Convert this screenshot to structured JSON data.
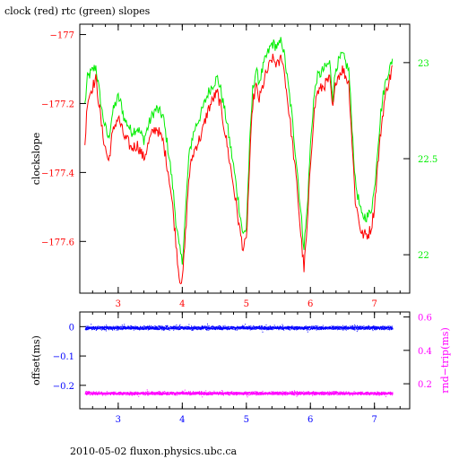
{
  "title": "clock (red) rtc (green) slopes",
  "footer": "2010-05-02 fluxon.physics.ubc.ca",
  "colors": {
    "red": "#ff0000",
    "green": "#00ee00",
    "blue": "#0000ff",
    "magenta": "#ff00ff",
    "axis": "#000000"
  },
  "chart_data": [
    {
      "type": "line",
      "xlim": [
        2.4,
        7.55
      ],
      "x_ticks": [
        3,
        4,
        5,
        6,
        7
      ],
      "x_tick_labels": [
        "3",
        "4",
        "5",
        "6",
        "7"
      ],
      "x_tick_color": "red",
      "ylabel_left": "clockslope",
      "ylim_left": [
        -177.75,
        -176.97
      ],
      "y_ticks_left": [
        -177,
        -177.2,
        -177.4,
        -177.6
      ],
      "y_tick_labels_left": [
        "−177",
        "−177.2",
        "−177.4",
        "−177.6"
      ],
      "ylim_right": [
        21.8,
        23.2
      ],
      "y_ticks_right": [
        23,
        22.5,
        22
      ],
      "y_tick_labels_right": [
        "23",
        "22.5",
        "22"
      ],
      "series": [
        {
          "name": "clock",
          "color": "red",
          "axis": "left",
          "x": [
            2.48,
            2.52,
            2.6,
            2.65,
            2.7,
            2.75,
            2.8,
            2.85,
            2.9,
            2.95,
            3.0,
            3.05,
            3.1,
            3.15,
            3.2,
            3.3,
            3.4,
            3.5,
            3.55,
            3.6,
            3.7,
            3.8,
            3.85,
            3.9,
            3.95,
            4.0,
            4.05,
            4.1,
            4.15,
            4.2,
            4.3,
            4.4,
            4.5,
            4.55,
            4.6,
            4.7,
            4.8,
            4.9,
            4.95,
            5.0,
            5.05,
            5.1,
            5.15,
            5.2,
            5.3,
            5.4,
            5.5,
            5.55,
            5.6,
            5.7,
            5.8,
            5.85,
            5.9,
            5.95,
            6.0,
            6.05,
            6.1,
            6.2,
            6.3,
            6.35,
            6.4,
            6.5,
            6.6,
            6.7,
            6.8,
            6.9,
            6.95,
            7.0,
            7.05,
            7.1,
            7.15,
            7.2,
            7.25,
            7.28
          ],
          "y": [
            -177.32,
            -177.19,
            -177.15,
            -177.13,
            -177.2,
            -177.28,
            -177.33,
            -177.37,
            -177.3,
            -177.26,
            -177.24,
            -177.27,
            -177.3,
            -177.31,
            -177.33,
            -177.32,
            -177.36,
            -177.3,
            -177.28,
            -177.27,
            -177.31,
            -177.42,
            -177.5,
            -177.6,
            -177.7,
            -177.72,
            -177.58,
            -177.42,
            -177.36,
            -177.33,
            -177.29,
            -177.22,
            -177.18,
            -177.17,
            -177.21,
            -177.32,
            -177.44,
            -177.57,
            -177.62,
            -177.6,
            -177.38,
            -177.2,
            -177.15,
            -177.19,
            -177.12,
            -177.07,
            -177.09,
            -177.06,
            -177.12,
            -177.28,
            -177.46,
            -177.58,
            -177.68,
            -177.56,
            -177.38,
            -177.24,
            -177.17,
            -177.15,
            -177.13,
            -177.22,
            -177.13,
            -177.1,
            -177.14,
            -177.48,
            -177.58,
            -177.58,
            -177.56,
            -177.5,
            -177.38,
            -177.28,
            -177.2,
            -177.15,
            -177.12,
            -177.09
          ]
        },
        {
          "name": "rtc",
          "color": "green",
          "axis": "right",
          "x": [
            2.48,
            2.52,
            2.6,
            2.65,
            2.7,
            2.75,
            2.8,
            2.85,
            2.9,
            2.95,
            3.0,
            3.05,
            3.1,
            3.15,
            3.2,
            3.3,
            3.4,
            3.5,
            3.55,
            3.6,
            3.7,
            3.8,
            3.85,
            3.9,
            3.95,
            4.0,
            4.05,
            4.1,
            4.15,
            4.2,
            4.3,
            4.4,
            4.5,
            4.55,
            4.6,
            4.7,
            4.8,
            4.9,
            4.95,
            5.0,
            5.05,
            5.1,
            5.15,
            5.2,
            5.3,
            5.4,
            5.5,
            5.55,
            5.6,
            5.7,
            5.8,
            5.85,
            5.9,
            5.95,
            6.0,
            6.05,
            6.1,
            6.2,
            6.3,
            6.35,
            6.4,
            6.5,
            6.6,
            6.7,
            6.8,
            6.9,
            6.95,
            7.0,
            7.05,
            7.1,
            7.15,
            7.2,
            7.25,
            7.28
          ],
          "y": [
            22.78,
            22.92,
            22.96,
            22.98,
            22.86,
            22.74,
            22.66,
            22.6,
            22.72,
            22.78,
            22.82,
            22.78,
            22.7,
            22.68,
            22.64,
            22.66,
            22.6,
            22.7,
            22.74,
            22.76,
            22.72,
            22.5,
            22.36,
            22.18,
            22.04,
            21.96,
            22.22,
            22.5,
            22.6,
            22.66,
            22.74,
            22.84,
            22.9,
            22.92,
            22.86,
            22.68,
            22.46,
            22.22,
            22.1,
            22.14,
            22.56,
            22.86,
            22.96,
            22.9,
            23.02,
            23.1,
            23.08,
            23.12,
            23.02,
            22.76,
            22.42,
            22.22,
            22.04,
            22.24,
            22.56,
            22.8,
            22.92,
            22.96,
            23.0,
            22.82,
            22.98,
            23.04,
            22.96,
            22.38,
            22.2,
            22.2,
            22.24,
            22.34,
            22.56,
            22.74,
            22.86,
            22.94,
            22.98,
            23.02
          ]
        }
      ]
    },
    {
      "type": "scatter",
      "xlim": [
        2.4,
        7.55
      ],
      "x_ticks": [
        3,
        4,
        5,
        6,
        7
      ],
      "x_tick_labels": [
        "3",
        "4",
        "5",
        "6",
        "7"
      ],
      "x_tick_color": "blue",
      "ylabel_left": "offset(ms)",
      "ylim_left": [
        -0.28,
        0.05
      ],
      "y_ticks_left": [
        0,
        -0.1,
        -0.2
      ],
      "y_tick_labels_left": [
        "0",
        "−0.1",
        "−0.2"
      ],
      "ylabel_right": "rnd−trip(ms)",
      "ylim_right": [
        0.05,
        0.63
      ],
      "y_ticks_right": [
        0.6,
        0.4,
        0.2
      ],
      "y_tick_labels_right": [
        "0.6",
        "0.4",
        "0.2"
      ],
      "series": [
        {
          "name": "offset",
          "color": "blue",
          "axis": "left",
          "x_range": [
            2.48,
            7.28
          ],
          "center": -0.003,
          "spread": 0.009
        },
        {
          "name": "rnd-trip",
          "color": "magenta",
          "axis": "right",
          "x_range": [
            2.48,
            7.28
          ],
          "center": 0.145,
          "spread": 0.014
        }
      ]
    }
  ]
}
